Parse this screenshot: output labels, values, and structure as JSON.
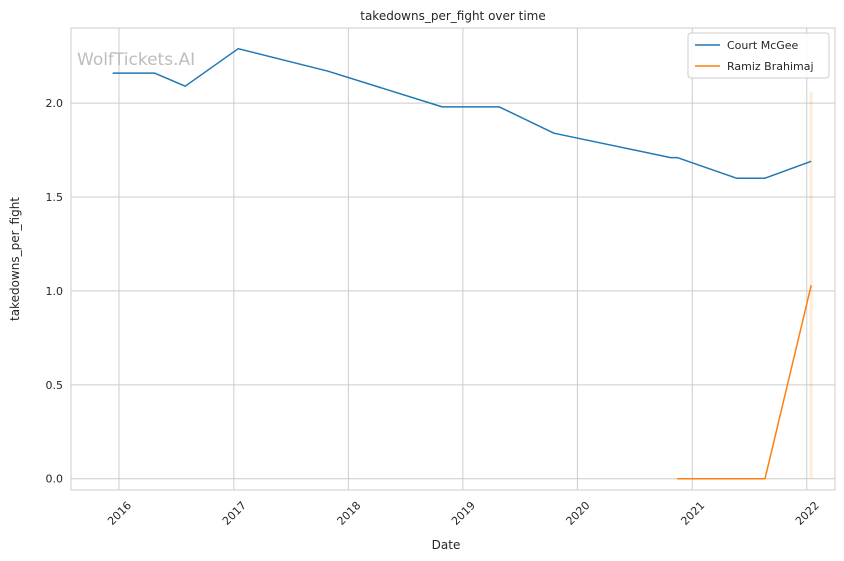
{
  "chart_data": {
    "type": "line",
    "title": "takedowns_per_fight over time",
    "xlabel": "Date",
    "ylabel": "takedowns_per_fight",
    "watermark": "WolfTickets.AI",
    "x_ticks": [
      "2016",
      "2017",
      "2018",
      "2019",
      "2020",
      "2021",
      "2022"
    ],
    "y_ticks": [
      "0.0",
      "0.5",
      "1.0",
      "1.5",
      "2.0"
    ],
    "xlim": [
      "2015-08-01",
      "2022-04-01"
    ],
    "ylim": [
      -0.06,
      2.4
    ],
    "grid": true,
    "legend_position": "top-right",
    "series": [
      {
        "name": "Court McGee",
        "color": "#1f77b4",
        "points": [
          {
            "x": "2015-12-12",
            "y": 2.16
          },
          {
            "x": "2016-04-23",
            "y": 2.16
          },
          {
            "x": "2016-07-30",
            "y": 2.09
          },
          {
            "x": "2017-01-15",
            "y": 2.29
          },
          {
            "x": "2017-10-28",
            "y": 2.17
          },
          {
            "x": "2018-10-27",
            "y": 1.98
          },
          {
            "x": "2019-04-27",
            "y": 1.98
          },
          {
            "x": "2019-10-18",
            "y": 1.84
          },
          {
            "x": "2020-10-24",
            "y": 1.71
          },
          {
            "x": "2020-11-14",
            "y": 1.71
          },
          {
            "x": "2021-05-22",
            "y": 1.6
          },
          {
            "x": "2021-08-21",
            "y": 1.6
          },
          {
            "x": "2022-01-15",
            "y": 1.69
          }
        ]
      },
      {
        "name": "Ramiz Brahimaj",
        "color": "#ff7f0e",
        "points": [
          {
            "x": "2020-11-14",
            "y": 0.0
          },
          {
            "x": "2021-05-22",
            "y": 0.0
          },
          {
            "x": "2021-08-21",
            "y": 0.0
          },
          {
            "x": "2022-01-15",
            "y": 1.03
          }
        ],
        "band": {
          "x": "2022-01-15",
          "y_low": 0.0,
          "y_high": 2.06
        }
      }
    ]
  }
}
